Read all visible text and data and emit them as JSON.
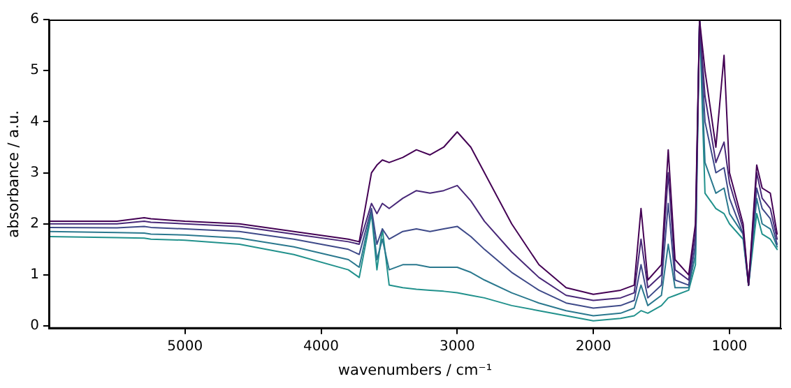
{
  "chart_data": {
    "type": "line",
    "xlabel": "wavenumbers / cm⁻¹",
    "ylabel": "absorbance / a.u.",
    "x": [
      6000,
      5500,
      5300,
      5250,
      5000,
      4600,
      4200,
      3800,
      3720,
      3630,
      3590,
      3550,
      3500,
      3400,
      3300,
      3200,
      3100,
      3000,
      2900,
      2800,
      2600,
      2400,
      2200,
      2000,
      1800,
      1700,
      1650,
      1600,
      1500,
      1450,
      1400,
      1300,
      1250,
      1220,
      1180,
      1100,
      1040,
      1000,
      900,
      860,
      800,
      760,
      700,
      650
    ],
    "series": [
      {
        "color": "#440154",
        "values": [
          2.05,
          2.05,
          2.12,
          2.1,
          2.05,
          2.0,
          1.85,
          1.7,
          1.65,
          3.0,
          3.15,
          3.25,
          3.2,
          3.3,
          3.45,
          3.35,
          3.5,
          3.8,
          3.5,
          3.0,
          2.0,
          1.2,
          0.75,
          0.62,
          0.7,
          0.8,
          2.3,
          0.9,
          1.2,
          3.45,
          1.3,
          1.0,
          2.0,
          6,
          5.0,
          3.5,
          5.3,
          3.0,
          2.0,
          0.8,
          3.15,
          2.7,
          2.6,
          1.8
        ]
      },
      {
        "color": "#482878",
        "values": [
          2.0,
          2.0,
          2.05,
          2.03,
          2.0,
          1.95,
          1.8,
          1.65,
          1.6,
          2.4,
          2.2,
          2.4,
          2.3,
          2.5,
          2.65,
          2.6,
          2.65,
          2.75,
          2.45,
          2.05,
          1.45,
          0.95,
          0.6,
          0.5,
          0.55,
          0.65,
          1.7,
          0.75,
          1.0,
          3.0,
          1.1,
          0.9,
          1.8,
          6,
          4.5,
          3.2,
          3.6,
          2.8,
          1.9,
          0.8,
          3.0,
          2.5,
          2.3,
          1.7
        ]
      },
      {
        "color": "#3e4a89",
        "values": [
          1.93,
          1.92,
          1.95,
          1.93,
          1.9,
          1.85,
          1.7,
          1.5,
          1.4,
          2.3,
          1.6,
          1.9,
          1.7,
          1.85,
          1.9,
          1.85,
          1.9,
          1.95,
          1.75,
          1.5,
          1.05,
          0.7,
          0.45,
          0.35,
          0.4,
          0.5,
          1.2,
          0.55,
          0.8,
          2.4,
          0.9,
          0.8,
          1.6,
          6,
          4.0,
          3.0,
          3.1,
          2.5,
          1.8,
          0.8,
          2.7,
          2.3,
          2.1,
          1.6
        ]
      },
      {
        "color": "#2a788e",
        "values": [
          1.85,
          1.83,
          1.82,
          1.8,
          1.78,
          1.72,
          1.55,
          1.3,
          1.15,
          2.25,
          1.3,
          1.7,
          1.1,
          1.2,
          1.2,
          1.15,
          1.15,
          1.15,
          1.05,
          0.9,
          0.65,
          0.45,
          0.3,
          0.2,
          0.25,
          0.35,
          0.8,
          0.4,
          0.6,
          1.6,
          0.75,
          0.75,
          1.4,
          6,
          3.2,
          2.6,
          2.7,
          2.2,
          1.8,
          0.8,
          2.5,
          2.0,
          1.9,
          1.55
        ]
      },
      {
        "color": "#21918c",
        "values": [
          1.75,
          1.73,
          1.72,
          1.7,
          1.68,
          1.6,
          1.4,
          1.1,
          0.95,
          2.2,
          1.1,
          1.9,
          0.8,
          0.75,
          0.72,
          0.7,
          0.68,
          0.65,
          0.6,
          0.55,
          0.4,
          0.3,
          0.2,
          0.1,
          0.15,
          0.2,
          0.3,
          0.25,
          0.4,
          0.55,
          0.6,
          0.7,
          1.2,
          6,
          2.6,
          2.3,
          2.2,
          2.0,
          1.7,
          0.8,
          2.2,
          1.8,
          1.7,
          1.5
        ]
      }
    ],
    "xlim": [
      6000,
      620
    ],
    "ylim": [
      -0.05,
      6
    ],
    "xticks": [
      5000,
      4000,
      3000,
      2000,
      1000
    ],
    "yticks": [
      0,
      1,
      2,
      3,
      4,
      5,
      6
    ],
    "grid": false,
    "legend": false,
    "marker": "none",
    "line_style": "solid"
  }
}
